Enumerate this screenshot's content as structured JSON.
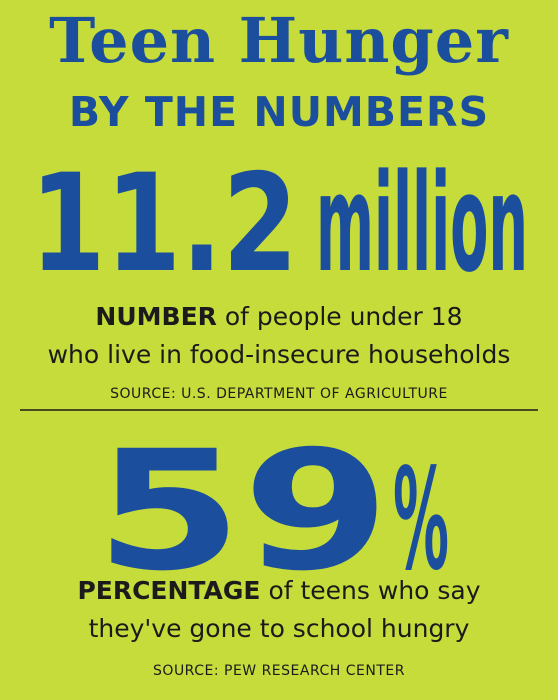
{
  "header": {
    "title": "Teen Hunger",
    "subtitle": "BY THE NUMBERS"
  },
  "stats": [
    {
      "figure": 11.2,
      "unit": "million",
      "label": "NUMBER",
      "description": [
        "of people under 18",
        "who live in food-insecure households"
      ],
      "source": "SOURCE: U.S. DEPARTMENT OF AGRICULTURE"
    },
    {
      "figure": 59,
      "unit": "%",
      "label": "PERCENTAGE",
      "description": [
        "of teens who say",
        "they've gone to school hungry"
      ],
      "source": "SOURCE: PEW RESEARCH CENTER"
    }
  ]
}
